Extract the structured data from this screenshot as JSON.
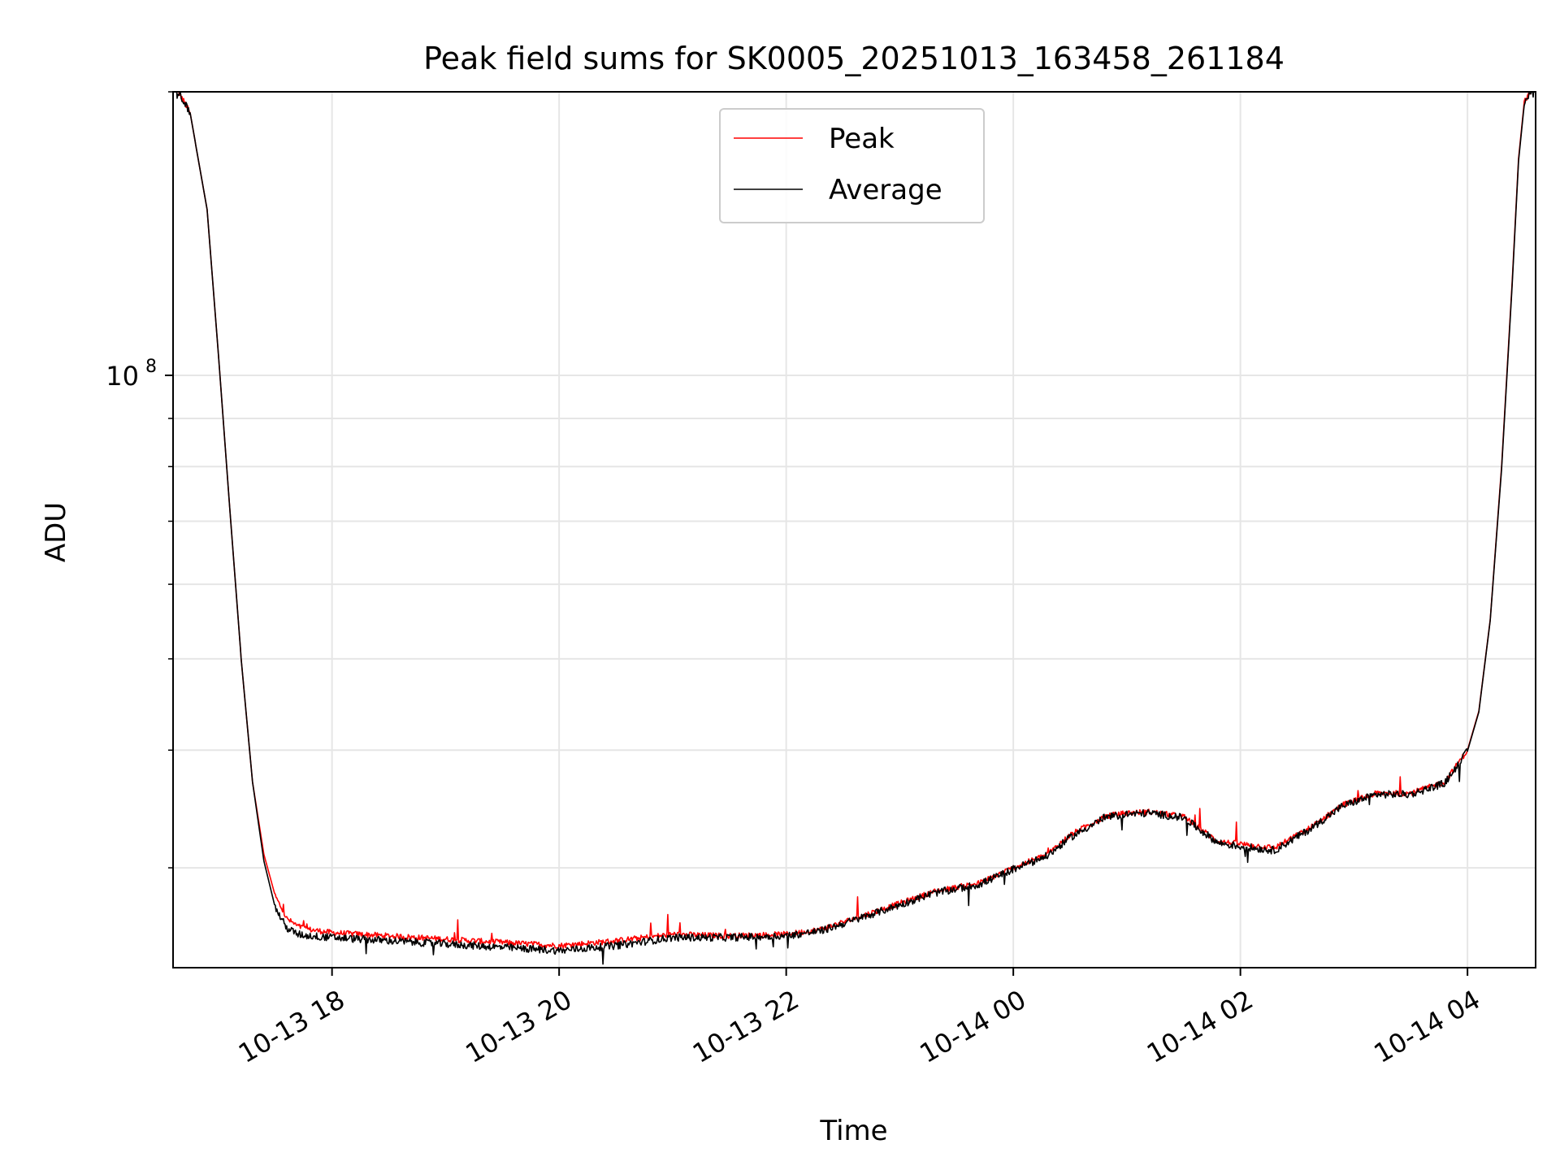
{
  "chart_data": {
    "type": "line",
    "title": "Peak field sums for SK0005_20251013_163458_261184",
    "xlabel": "Time",
    "ylabel": "ADU",
    "yscale": "log",
    "ylim": [
      23500000,
      200000000
    ],
    "xlim_hours": [
      16.6,
      28.6
    ],
    "x_ticks": [
      {
        "hour": 18,
        "label": "10-13 18"
      },
      {
        "hour": 20,
        "label": "10-13 20"
      },
      {
        "hour": 22,
        "label": "10-13 22"
      },
      {
        "hour": 24,
        "label": "10-14 00"
      },
      {
        "hour": 26,
        "label": "10-14 02"
      },
      {
        "hour": 28,
        "label": "10-14 04"
      }
    ],
    "y_major_ticks": [
      {
        "value": 100000000,
        "base": "10",
        "exp": "8"
      }
    ],
    "y_minor_ticks": [
      30000000,
      40000000,
      50000000,
      60000000,
      70000000,
      80000000,
      90000000,
      200000000
    ],
    "grid": true,
    "legend_position": "upper-center",
    "series": [
      {
        "name": "Peak",
        "color": "#ff0000",
        "x_hours": [
          16.6,
          16.75,
          16.9,
          17.0,
          17.1,
          17.2,
          17.3,
          17.4,
          17.5,
          17.6,
          17.7,
          17.8,
          18.0,
          18.5,
          19.0,
          19.5,
          20.0,
          20.5,
          21.0,
          21.5,
          22.0,
          22.3,
          22.6,
          23.0,
          23.3,
          23.7,
          24.0,
          24.3,
          24.5,
          24.8,
          25.0,
          25.2,
          25.5,
          25.8,
          26.0,
          26.3,
          26.6,
          26.9,
          27.2,
          27.5,
          27.8,
          28.0,
          28.1,
          28.2,
          28.3,
          28.4,
          28.45,
          28.5,
          28.6
        ],
        "values": [
          205000000,
          190000000,
          150000000,
          105000000,
          72000000,
          50000000,
          37000000,
          31000000,
          28000000,
          26500000,
          26000000,
          25800000,
          25600000,
          25400000,
          25200000,
          25000000,
          24800000,
          25100000,
          25500000,
          25400000,
          25500000,
          25800000,
          26500000,
          27500000,
          28300000,
          28900000,
          30000000,
          31000000,
          32500000,
          34000000,
          34300000,
          34400000,
          34000000,
          32000000,
          31800000,
          31500000,
          33000000,
          35000000,
          36000000,
          36000000,
          37000000,
          40000000,
          44000000,
          55000000,
          80000000,
          130000000,
          170000000,
          195000000,
          205000000
        ]
      },
      {
        "name": "Average",
        "color": "#000000",
        "x_hours": [
          16.6,
          16.75,
          16.9,
          17.0,
          17.1,
          17.2,
          17.3,
          17.4,
          17.5,
          17.6,
          17.7,
          17.8,
          18.0,
          18.5,
          19.0,
          19.5,
          20.0,
          20.5,
          21.0,
          21.5,
          22.0,
          22.3,
          22.6,
          23.0,
          23.3,
          23.7,
          24.0,
          24.3,
          24.5,
          24.8,
          25.0,
          25.2,
          25.5,
          25.8,
          26.0,
          26.3,
          26.6,
          26.9,
          27.2,
          27.5,
          27.8,
          28.0,
          28.1,
          28.2,
          28.3,
          28.4,
          28.45,
          28.5,
          28.6
        ],
        "values": [
          205000000,
          190000000,
          150000000,
          105000000,
          72000000,
          50000000,
          37000000,
          30500000,
          27200000,
          25900000,
          25500000,
          25400000,
          25300000,
          25100000,
          24900000,
          24700000,
          24500000,
          24800000,
          25300000,
          25300000,
          25400000,
          25700000,
          26400000,
          27400000,
          28200000,
          28800000,
          29900000,
          30900000,
          32300000,
          33900000,
          34200000,
          34300000,
          33900000,
          31900000,
          31600000,
          31300000,
          32900000,
          34900000,
          35900000,
          35900000,
          36900000,
          39900000,
          43900000,
          54900000,
          79500000,
          129000000,
          169000000,
          194000000,
          205000000
        ]
      }
    ]
  }
}
